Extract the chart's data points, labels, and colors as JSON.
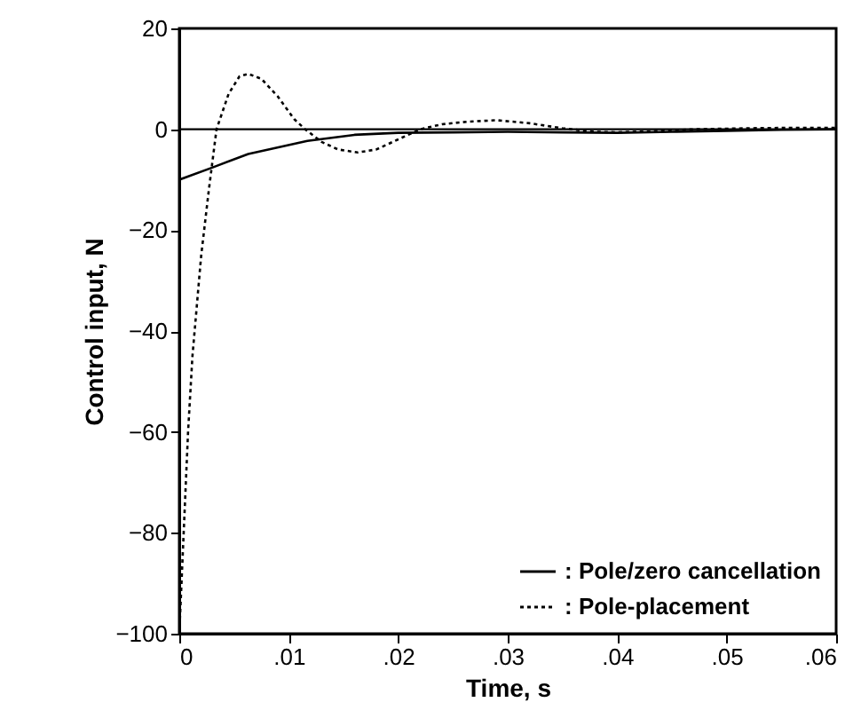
{
  "chart_data": {
    "type": "line",
    "xlabel": "Time, s",
    "ylabel": "Control input, N",
    "xlim": [
      0,
      0.06
    ],
    "xticks": [
      {
        "value": 0,
        "label": "0"
      },
      {
        "value": 0.01,
        "label": ".01"
      },
      {
        "value": 0.02,
        "label": ".02"
      },
      {
        "value": 0.03,
        "label": ".03"
      },
      {
        "value": 0.04,
        "label": ".04"
      },
      {
        "value": 0.05,
        "label": ".05"
      },
      {
        "value": 0.06,
        "label": ".06"
      }
    ],
    "ylim": [
      -100,
      20
    ],
    "yticks": [
      -100,
      -80,
      -60,
      -40,
      -20,
      0,
      20
    ],
    "grid": false,
    "legend": "bottom right",
    "ref_lines": [
      {
        "axis": "y",
        "value": 0,
        "color": "#000000",
        "line_style": "solid"
      }
    ],
    "series": [
      {
        "name": ": Pole/zero cancellation",
        "color": "#000000",
        "line_style": "solid",
        "x": [
          0,
          0.003,
          0.0063,
          0.0117,
          0.016,
          0.02,
          0.025,
          0.03,
          0.035,
          0.04,
          0.045,
          0.05,
          0.055,
          0.06
        ],
        "values": [
          -10,
          -7.6,
          -4.9,
          -2.3,
          -1.1,
          -0.7,
          -0.6,
          -0.5,
          -0.6,
          -0.7,
          -0.5,
          -0.3,
          -0.1,
          0
        ]
      },
      {
        "name": ": Pole-placement",
        "color": "#000000",
        "line_style": "dotted",
        "x": [
          0,
          0.0004,
          0.0008,
          0.0012,
          0.0016,
          0.002,
          0.0027,
          0.0034,
          0.0045,
          0.0055,
          0.0063,
          0.0075,
          0.009,
          0.0105,
          0.0115,
          0.013,
          0.0145,
          0.0163,
          0.018,
          0.02,
          0.022,
          0.024,
          0.0263,
          0.029,
          0.032,
          0.035,
          0.038,
          0.04,
          0.043,
          0.047,
          0.052,
          0.056,
          0.06
        ],
        "values": [
          -100,
          -80,
          -60,
          -45,
          -35,
          -25,
          -12,
          0,
          7,
          10.5,
          11,
          10,
          6.5,
          2,
          0,
          -2.5,
          -4,
          -4.6,
          -4,
          -2,
          0,
          1,
          1.5,
          1.8,
          1.2,
          0.2,
          -0.5,
          -0.6,
          -0.4,
          0,
          0.2,
          0.3,
          0.3
        ]
      }
    ]
  }
}
